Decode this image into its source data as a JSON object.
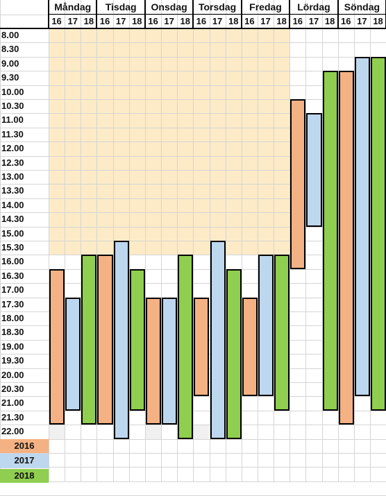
{
  "days": [
    "Måndag",
    "Tisdag",
    "Onsdag",
    "Torsdag",
    "Fredag",
    "Lördag",
    "Söndag"
  ],
  "years": [
    "16",
    "17",
    "18"
  ],
  "times": [
    "8.00",
    "8.30",
    "9.00",
    "9.30",
    "10.00",
    "10.30",
    "11.00",
    "11.30",
    "12.00",
    "12.30",
    "13.00",
    "13.30",
    "14.00",
    "14.30",
    "15.00",
    "15.30",
    "16.00",
    "16.30",
    "17.00",
    "17.30",
    "18.00",
    "18.30",
    "19.00",
    "19.30",
    "20.00",
    "20.30",
    "21.00",
    "21.30",
    "22.00"
  ],
  "colors": {
    "y2016": "#f4b183",
    "y2017": "#bdd7ee",
    "y2018": "#8fce4f",
    "weekday_closed": "#fdebc8",
    "grid": "#d4d4d4",
    "light_grey": "#f0f0f0"
  },
  "weekday_shaded_range": [
    "8.00",
    "16.00"
  ],
  "chart_data": {
    "type": "table",
    "note_units": "opening intervals per day and year",
    "bars": [
      {
        "day": "Måndag",
        "year": "16",
        "from": "16.30",
        "to": "21.30"
      },
      {
        "day": "Måndag",
        "year": "17",
        "from": "17.30",
        "to": "21.00"
      },
      {
        "day": "Måndag",
        "year": "18",
        "from": "16.00",
        "to": "21.30"
      },
      {
        "day": "Tisdag",
        "year": "16",
        "from": "16.00",
        "to": "21.30"
      },
      {
        "day": "Tisdag",
        "year": "17",
        "from": "15.30",
        "to": "22.00"
      },
      {
        "day": "Tisdag",
        "year": "18",
        "from": "16.30",
        "to": "21.00"
      },
      {
        "day": "Onsdag",
        "year": "16",
        "from": "17.30",
        "to": "21.30"
      },
      {
        "day": "Onsdag",
        "year": "17",
        "from": "17.30",
        "to": "21.30"
      },
      {
        "day": "Onsdag",
        "year": "18",
        "from": "16.00",
        "to": "22.00"
      },
      {
        "day": "Torsdag",
        "year": "16",
        "from": "17.30",
        "to": "20.30"
      },
      {
        "day": "Torsdag",
        "year": "17",
        "from": "15.30",
        "to": "22.00"
      },
      {
        "day": "Torsdag",
        "year": "18",
        "from": "16.30",
        "to": "22.00"
      },
      {
        "day": "Fredag",
        "year": "16",
        "from": "17.30",
        "to": "20.30"
      },
      {
        "day": "Fredag",
        "year": "17",
        "from": "16.00",
        "to": "20.30"
      },
      {
        "day": "Fredag",
        "year": "18",
        "from": "16.00",
        "to": "21.00"
      },
      {
        "day": "Lördag",
        "year": "16",
        "from": "10.30",
        "to": "16.00"
      },
      {
        "day": "Lördag",
        "year": "17",
        "from": "11.00",
        "to": "14.30"
      },
      {
        "day": "Lördag",
        "year": "18",
        "from": "9.30",
        "to": "21.00"
      },
      {
        "day": "Söndag",
        "year": "16",
        "from": "9.30",
        "to": "21.30"
      },
      {
        "day": "Söndag",
        "year": "17",
        "from": "9.00",
        "to": "20.30"
      },
      {
        "day": "Söndag",
        "year": "18",
        "from": "9.00",
        "to": "21.00"
      }
    ]
  },
  "legend": [
    {
      "label": "2016",
      "color": "#f4b183"
    },
    {
      "label": "2017",
      "color": "#bdd7ee"
    },
    {
      "label": "2018",
      "color": "#8fce4f"
    }
  ]
}
